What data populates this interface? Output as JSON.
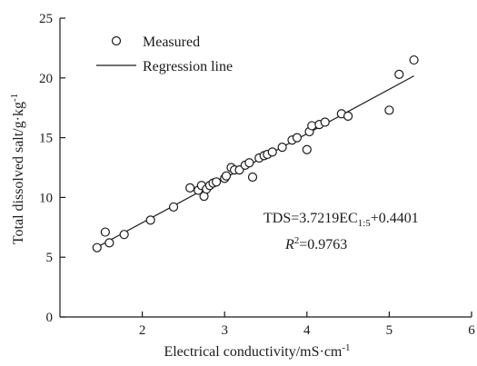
{
  "chart_data": {
    "type": "scatter",
    "xlabel_main": "Electrical conductivity/mS·cm",
    "xlabel_sup": "-1",
    "ylabel_main": "Total dissolved salt/g·kg",
    "ylabel_sup": "-1",
    "xlim": [
      1,
      6
    ],
    "ylim": [
      0,
      25
    ],
    "xticks": [
      2,
      3,
      4,
      5,
      6
    ],
    "yticks": [
      0,
      5,
      10,
      15,
      20,
      25
    ],
    "xtick_labels": [
      "2",
      "3",
      "4",
      "5",
      "6"
    ],
    "ytick_labels": [
      "0",
      "5",
      "10",
      "15",
      "20",
      "25"
    ],
    "legend": {
      "placement": "top-left",
      "measured_label": "Measured",
      "regression_label": "Regression line"
    },
    "equation": {
      "prefix": "TDS=3.7219EC",
      "subscript": "1:5",
      "suffix": "+0.4401",
      "r2_symbol": "R",
      "r2_sup": "2",
      "r2_value": "=0.9763"
    },
    "regression": {
      "slope": 3.7219,
      "intercept": 0.4401,
      "x_range": [
        1.45,
        5.3
      ]
    },
    "series": [
      {
        "name": "Measured",
        "x": [
          1.45,
          1.55,
          1.6,
          1.78,
          2.1,
          2.38,
          2.58,
          2.68,
          2.72,
          2.75,
          2.78,
          2.82,
          2.86,
          2.9,
          3.0,
          3.02,
          3.08,
          3.12,
          3.18,
          3.25,
          3.3,
          3.34,
          3.42,
          3.48,
          3.52,
          3.58,
          3.7,
          3.82,
          3.88,
          4.0,
          4.03,
          4.06,
          4.15,
          4.22,
          4.42,
          4.5,
          5.0,
          5.12,
          5.3
        ],
        "y": [
          5.8,
          7.1,
          6.2,
          6.9,
          8.1,
          9.2,
          10.8,
          10.6,
          11.0,
          10.1,
          10.7,
          11.0,
          11.2,
          11.3,
          11.6,
          11.8,
          12.5,
          12.3,
          12.3,
          12.7,
          12.9,
          11.7,
          13.3,
          13.5,
          13.6,
          13.8,
          14.2,
          14.8,
          15.0,
          14.0,
          15.5,
          16.0,
          16.1,
          16.3,
          17.0,
          16.8,
          17.3,
          20.3,
          21.5
        ]
      }
    ]
  }
}
